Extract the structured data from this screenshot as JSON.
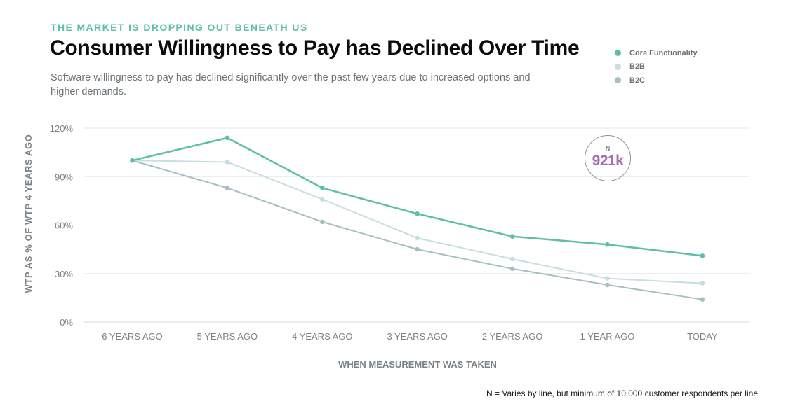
{
  "header": {
    "eyebrow": "THE MARKET IS DROPPING OUT BENEATH US",
    "title": "Consumer Willingness to Pay has Declined Over Time",
    "subtitle": "Software willingness to pay has declined significantly over the past few years due to increased options and higher demands."
  },
  "badge": {
    "label": "N",
    "value": "921k"
  },
  "footnote": "N = Varies by line, but minimum of 10,000 customer respondents per line",
  "chart_data": {
    "type": "line",
    "title": "Consumer Willingness to Pay has Declined Over Time",
    "xlabel": "WHEN MEASUREMENT WAS TAKEN",
    "ylabel": "WTP AS % OF WTP 4 YEARS AGO",
    "categories": [
      "6 YEARS AGO",
      "5 YEARS AGO",
      "4 YEARS AGO",
      "3 YEARS AGO",
      "2 YEARS AGO",
      "1 YEAR AGO",
      "TODAY"
    ],
    "ylim": [
      0,
      120
    ],
    "yticks": [
      0,
      30,
      60,
      90,
      120
    ],
    "ytick_labels": [
      "0%",
      "30%",
      "60%",
      "90%",
      "120%"
    ],
    "grid": true,
    "legend_position": "top-right",
    "series": [
      {
        "name": "Core Functionality",
        "color": "#5dbfa8",
        "values": [
          100,
          114,
          83,
          67,
          53,
          48,
          41
        ]
      },
      {
        "name": "B2B",
        "color": "#c8dde2",
        "values": [
          100,
          99,
          76,
          52,
          39,
          27,
          24
        ]
      },
      {
        "name": "B2C",
        "color": "#a6bfc3",
        "values": [
          100,
          83,
          62,
          45,
          33,
          23,
          14
        ]
      }
    ]
  }
}
